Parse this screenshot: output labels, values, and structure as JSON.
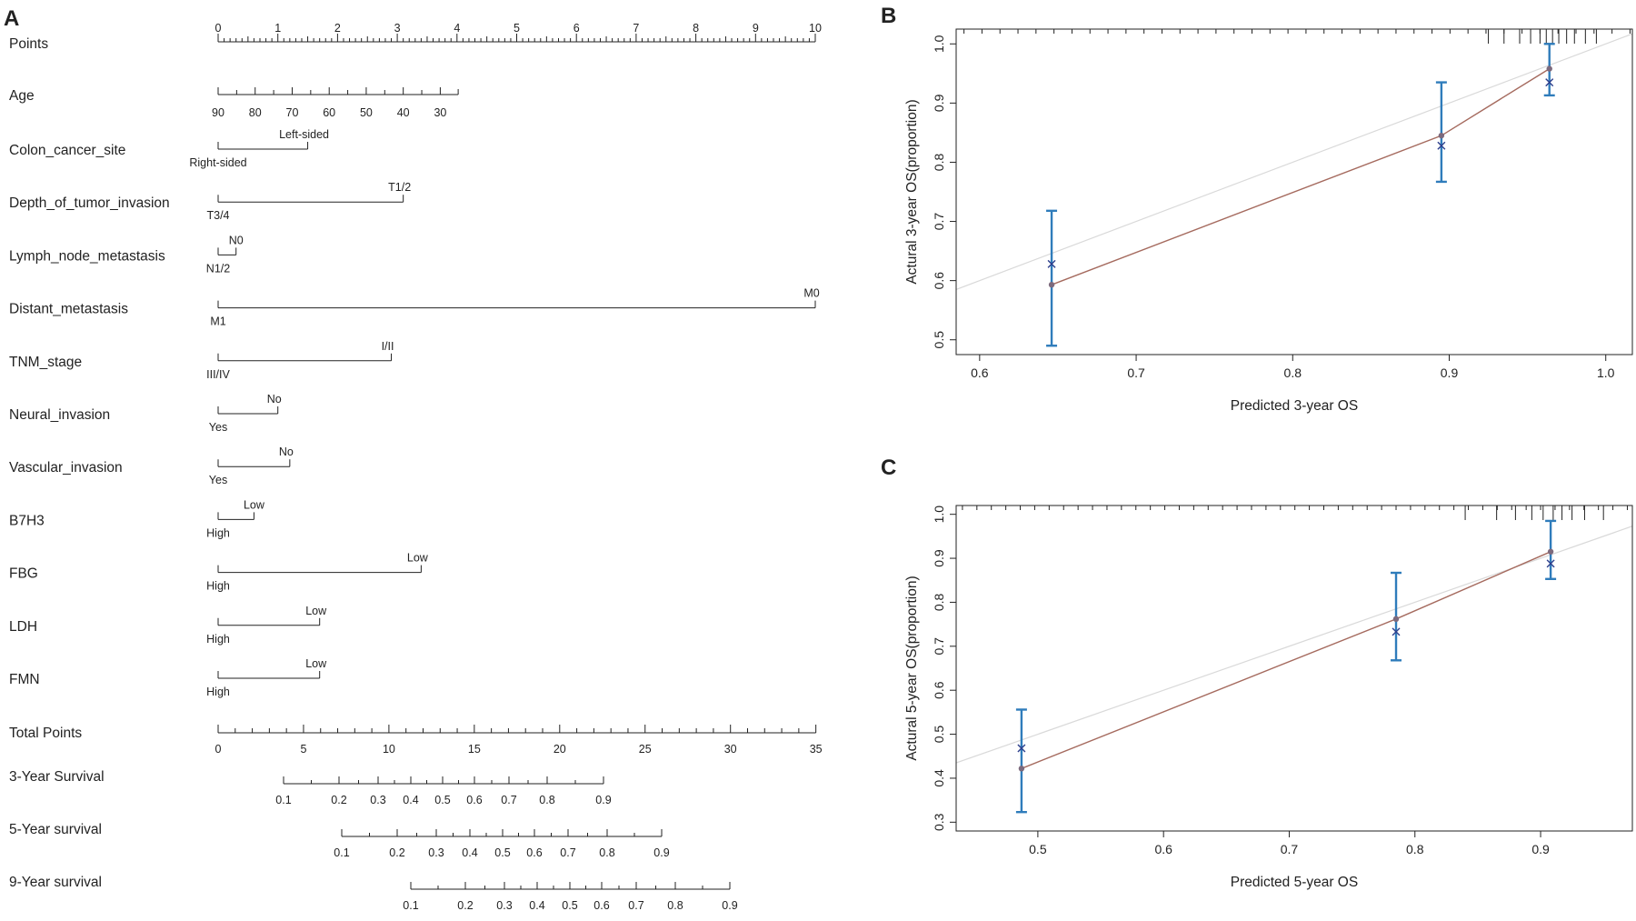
{
  "panels": {
    "a": "A",
    "b": "B",
    "c": "C"
  },
  "chart_data": [
    {
      "type": "nomogram",
      "points_scale": {
        "label": "Points",
        "ticks": [
          "0",
          "1",
          "2",
          "3",
          "4",
          "5",
          "6",
          "7",
          "8",
          "9",
          "10"
        ]
      },
      "variables": [
        {
          "label": "Age",
          "ticks": [
            "90",
            "80",
            "70",
            "60",
            "50",
            "40",
            "30"
          ]
        },
        {
          "label": "Colon_cancer_site",
          "levels": [
            "Left-sided",
            "Right-sided"
          ],
          "points": 1.5
        },
        {
          "label": "Depth_of_tumor_invasion",
          "levels": [
            "T1/2",
            "T3/4"
          ],
          "points": 3.1
        },
        {
          "label": "Lymph_node_metastasis",
          "levels": [
            "N0",
            "N1/2"
          ],
          "points": 0.3
        },
        {
          "label": "Distant_metastasis",
          "levels": [
            "M0",
            "M1"
          ],
          "points": 10
        },
        {
          "label": "TNM_stage",
          "levels": [
            "I/II",
            "III/IV"
          ],
          "points": 2.9
        },
        {
          "label": "Neural_invasion",
          "levels": [
            "No",
            "Yes"
          ],
          "points": 1.0
        },
        {
          "label": "Vascular_invasion",
          "levels": [
            "No",
            "Yes"
          ],
          "points": 1.2
        },
        {
          "label": "B7H3",
          "levels": [
            "Low",
            "High"
          ],
          "points": 0.6
        },
        {
          "label": "FBG",
          "levels": [
            "Low",
            "High"
          ],
          "points": 3.4
        },
        {
          "label": "LDH",
          "levels": [
            "Low",
            "High"
          ],
          "points": 1.7
        },
        {
          "label": "FMN",
          "levels": [
            "Low",
            "High"
          ],
          "points": 1.7
        }
      ],
      "total_points": {
        "label": "Total Points",
        "ticks": [
          "0",
          "5",
          "10",
          "15",
          "20",
          "25",
          "30",
          "35"
        ]
      },
      "survival": [
        {
          "label": "3-Year Survival",
          "ticks": [
            "0.1",
            "0.2",
            "0.3",
            "0.4",
            "0.5",
            "0.6",
            "0.7",
            "0.8",
            "0.9"
          ]
        },
        {
          "label": "5-Year survival",
          "ticks": [
            "0.1",
            "0.2",
            "0.3",
            "0.4",
            "0.5",
            "0.6",
            "0.7",
            "0.8",
            "0.9"
          ]
        },
        {
          "label": "9-Year survival",
          "ticks": [
            "0.1",
            "0.2",
            "0.3",
            "0.4",
            "0.5",
            "0.6",
            "0.7",
            "0.8",
            "0.9"
          ]
        }
      ]
    },
    {
      "type": "scatter",
      "title": "",
      "xlabel": "Predicted 3-year OS",
      "ylabel": "Actural 3-year OS(proportion)",
      "xlim": [
        0.585,
        1.017
      ],
      "ylim": [
        0.475,
        1.025
      ],
      "xticks": [
        "0.6",
        "0.7",
        "0.8",
        "0.9",
        "1.0"
      ],
      "yticks": [
        "0.5",
        "0.6",
        "0.7",
        "0.8",
        "0.9",
        "1.0"
      ],
      "points": [
        {
          "x": 0.646,
          "y": 0.593,
          "observed": 0.628,
          "lower": 0.49,
          "upper": 0.718
        },
        {
          "x": 0.895,
          "y": 0.845,
          "observed": 0.828,
          "lower": 0.767,
          "upper": 0.935
        },
        {
          "x": 0.964,
          "y": 0.958,
          "observed": 0.935,
          "lower": 0.913,
          "upper": 1.0
        }
      ],
      "rug_x": [
        0.925,
        0.935,
        0.945,
        0.952,
        0.958,
        0.962,
        0.966,
        0.97,
        0.975,
        0.98,
        0.987,
        0.994
      ],
      "colors": {
        "reference": "#d9d9d9",
        "calibration": "#a56a5e",
        "error": "#2f7cbb",
        "point": "#7d6a7d",
        "observed": "#2c3e8c"
      }
    },
    {
      "type": "scatter",
      "title": "",
      "xlabel": "Predicted 5-year OS",
      "ylabel": "Actural 5-year OS(proportion)",
      "xlim": [
        0.435,
        0.973
      ],
      "ylim": [
        0.28,
        1.02
      ],
      "xticks": [
        "0.5",
        "0.6",
        "0.7",
        "0.8",
        "0.9"
      ],
      "yticks": [
        "0.3",
        "0.4",
        "0.5",
        "0.6",
        "0.7",
        "0.8",
        "0.9",
        "1.0"
      ],
      "points": [
        {
          "x": 0.487,
          "y": 0.422,
          "observed": 0.468,
          "lower": 0.323,
          "upper": 0.556
        },
        {
          "x": 0.785,
          "y": 0.762,
          "observed": 0.733,
          "lower": 0.668,
          "upper": 0.867
        },
        {
          "x": 0.908,
          "y": 0.915,
          "observed": 0.888,
          "lower": 0.853,
          "upper": 0.985
        }
      ],
      "rug_x": [
        0.84,
        0.865,
        0.88,
        0.893,
        0.902,
        0.91,
        0.917,
        0.925,
        0.935,
        0.95
      ],
      "colors": {
        "reference": "#d9d9d9",
        "calibration": "#a56a5e",
        "error": "#2f7cbb",
        "point": "#7d6a7d",
        "observed": "#2c3e8c"
      }
    }
  ]
}
